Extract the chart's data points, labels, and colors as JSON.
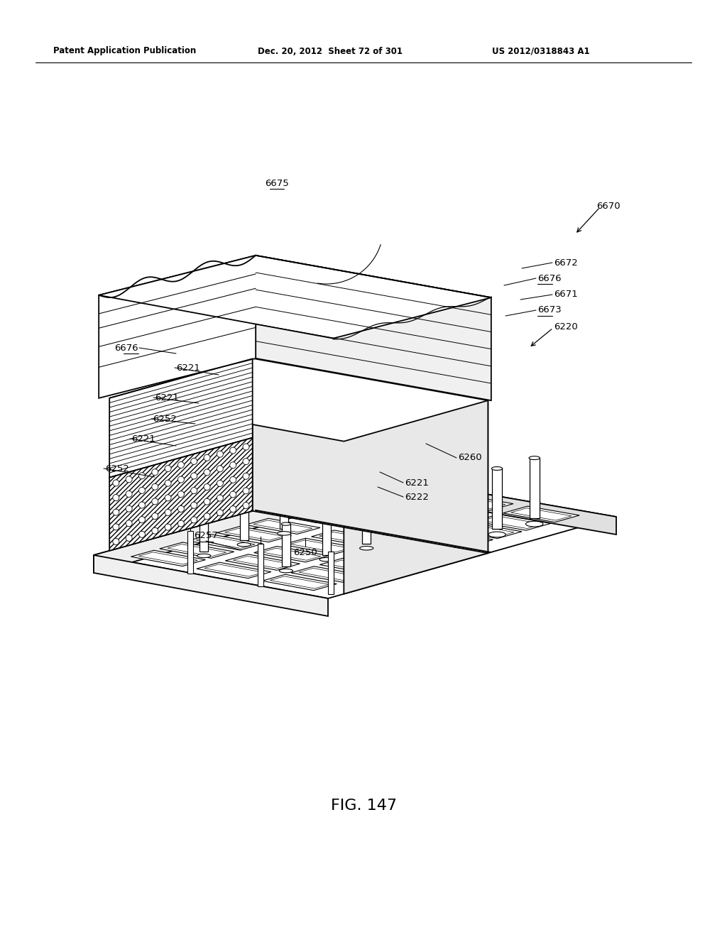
{
  "background_color": "#ffffff",
  "header_left": "Patent Application Publication",
  "header_middle": "Dec. 20, 2012  Sheet 72 of 301",
  "header_right": "US 2012/0318843 A1",
  "figure_label": "FIG. 147",
  "line_color": "#000000",
  "lw_main": 1.3,
  "lw_thin": 0.8,
  "lw_hatch": 0.7,
  "fontsize_label": 9.5,
  "fontsize_header": 8.5,
  "fontsize_fig": 16
}
